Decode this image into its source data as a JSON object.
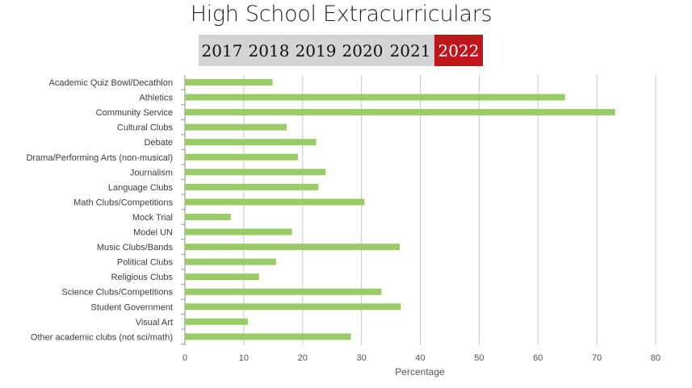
{
  "tabs": {
    "years": [
      "2017",
      "2018",
      "2019",
      "2020",
      "2021",
      "2022"
    ],
    "active": "2022"
  },
  "colors": {
    "bar": "#99cc66",
    "grid": "#c8c8c8",
    "active_tab": "#c0161b",
    "tab_bg": "#d4d4d4"
  },
  "chart_data": {
    "type": "bar",
    "orientation": "horizontal",
    "title": "High School Extracurriculars",
    "xlabel": "Percentage",
    "ylabel": "",
    "xlim": [
      0,
      80
    ],
    "xticks": [
      0,
      10,
      20,
      30,
      40,
      50,
      60,
      70,
      80
    ],
    "grid": true,
    "categories": [
      "Academic Quiz Bowl/Decathlon",
      "Athletics",
      "Community Service",
      "Cultural Clubs",
      "Debate",
      "Drama/Performing Arts (non-musical)",
      "Journalism",
      "Language Clubs",
      "Math Clubs/Competitions",
      "Mock Trial",
      "Model UN",
      "Music Clubs/Bands",
      "Political Clubs",
      "Religious Clubs",
      "Science Clubs/Competitions",
      "Student Government",
      "Visual Art",
      "Other academic clubs (not sci/math)"
    ],
    "values": [
      14.9,
      64.6,
      73.1,
      17.3,
      22.3,
      19.2,
      23.9,
      22.7,
      30.5,
      7.8,
      18.2,
      36.5,
      15.5,
      12.6,
      33.4,
      36.7,
      10.7,
      28.2
    ]
  }
}
